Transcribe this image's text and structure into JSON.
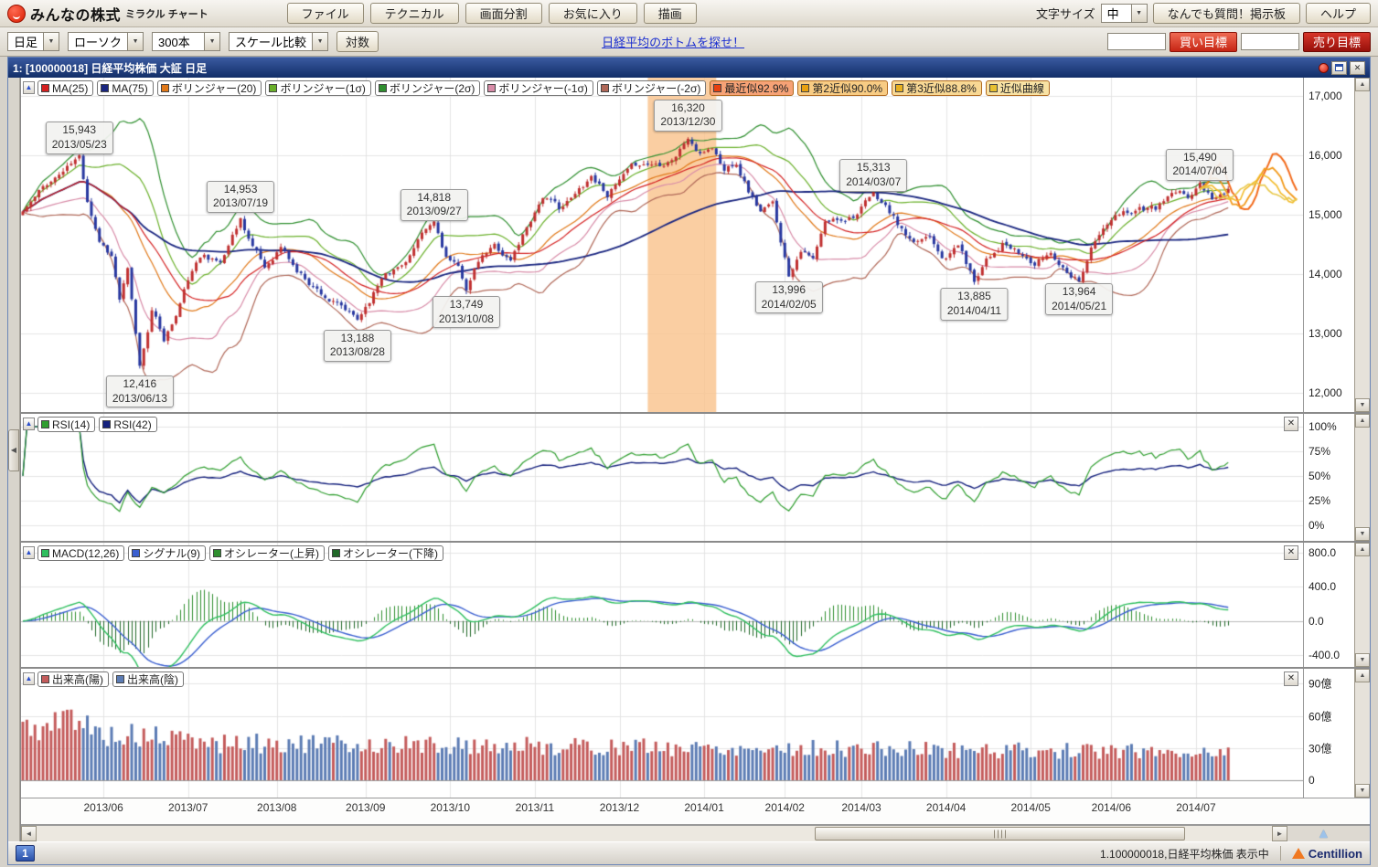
{
  "app": {
    "logo": {
      "brand": "みんなの株式",
      "product": "ミラクル チャート"
    },
    "toolbar1": {
      "buttons": [
        "ファイル",
        "テクニカル",
        "画面分割",
        "お気に入り",
        "描画"
      ],
      "font_size_label": "文字サイズ",
      "font_size_value": "中",
      "qa_button": "なんでも質問！掲示板",
      "help_button": "ヘルプ"
    },
    "toolbar2": {
      "period": "日足",
      "chart_style": "ローソク",
      "bar_count": "300本",
      "scale_compare": "スケール比較",
      "log_button": "対数",
      "link": "日経平均のボトムを探せ！",
      "buy_target_button": "買い目標",
      "sell_target_button": "売り目標"
    }
  },
  "window": {
    "title": "1:  [100000018] 日経平均株価 大証 日足",
    "statusbar": {
      "tab": "1",
      "status": "1.100000018,日経平均株価 表示中",
      "brand": "Centillion"
    }
  },
  "panels": {
    "price": {
      "legend": [
        {
          "label": "MA(25)",
          "swatch": "#d42020"
        },
        {
          "label": "MA(75)",
          "swatch": "#1a2680"
        },
        {
          "label": "ボリンジャー(20)",
          "swatch": "#e07818"
        },
        {
          "label": "ボリンジャー(1σ)",
          "swatch": "#6ab02a"
        },
        {
          "label": "ボリンジャー(2σ)",
          "swatch": "#2f8f2f"
        },
        {
          "label": "ボリンジャー(-1σ)",
          "swatch": "#d88ca8"
        },
        {
          "label": "ボリンジャー(-2σ)",
          "swatch": "#b06858"
        },
        {
          "label": "最近似92.9%",
          "swatch": "#e84010",
          "bg": "#f6a276"
        },
        {
          "label": "第2近似90.0%",
          "swatch": "#e8a010",
          "bg": "#f8cc84"
        },
        {
          "label": "第3近似88.8%",
          "swatch": "#e8b020",
          "bg": "#f8d894"
        },
        {
          "label": "近似曲線",
          "swatch": "#e8c030",
          "bg": "#f8e2a4"
        }
      ]
    },
    "rsi": {
      "legend": [
        {
          "label": "RSI(14)",
          "swatch": "#2f9e2f"
        },
        {
          "label": "RSI(42)",
          "swatch": "#16227e"
        }
      ]
    },
    "macd": {
      "legend": [
        {
          "label": "MACD(12,26)",
          "swatch": "#2fbf5f"
        },
        {
          "label": "シグナル(9)",
          "swatch": "#3a5fd0"
        },
        {
          "label": "オシレーター(上昇)",
          "swatch": "#2f8f2f"
        },
        {
          "label": "オシレーター(下降)",
          "swatch": "#206828"
        }
      ]
    },
    "volume": {
      "legend": [
        {
          "label": "出来高(陽)",
          "swatch": "#c45c5c"
        },
        {
          "label": "出来高(陰)",
          "swatch": "#5c7cb4"
        }
      ]
    }
  },
  "chart_data": {
    "type": "candlestick",
    "title": "日経平均株価 大証 日足",
    "num_candles": 300,
    "x_axis": {
      "labels": [
        "2013/06",
        "2013/07",
        "2013/08",
        "2013/09",
        "2013/10",
        "2013/11",
        "2013/12",
        "2014/01",
        "2014/02",
        "2014/03",
        "2014/04",
        "2014/05",
        "2014/06",
        "2014/07"
      ],
      "label_days": [
        20,
        41,
        63,
        85,
        106,
        127,
        148,
        169,
        189,
        208,
        229,
        250,
        270,
        291
      ]
    },
    "price_panel": {
      "y_ticks": [
        "17,000",
        "16,000",
        "15,000",
        "14,000",
        "13,000",
        "12,000"
      ],
      "y_tick_values": [
        17000,
        16000,
        15000,
        14000,
        13000,
        12000
      ],
      "scale_top": 17300,
      "scale_bottom": 11680,
      "highlight_band": {
        "day_from": 155,
        "day_to": 172,
        "color": "#f9c28b"
      },
      "colors": {
        "ma25": "#d42020",
        "ma75": "#1a2680",
        "boll20": "#e07818",
        "boll1": "#6ab02a",
        "boll2": "#2f8f2f",
        "boll_1": "#d88ca8",
        "boll_2": "#b06858",
        "candle_up": "#c03030",
        "candle_down": "#2838a0",
        "grid": "#e4e4e4"
      },
      "anchors": [
        [
          0,
          15050
        ],
        [
          6,
          15500
        ],
        [
          14,
          15943
        ],
        [
          16,
          15250
        ],
        [
          19,
          14600
        ],
        [
          22,
          14350
        ],
        [
          24,
          13600
        ],
        [
          26,
          14050
        ],
        [
          29,
          12416
        ],
        [
          32,
          13400
        ],
        [
          35,
          12900
        ],
        [
          38,
          13300
        ],
        [
          41,
          13900
        ],
        [
          45,
          14350
        ],
        [
          49,
          14200
        ],
        [
          54,
          14953
        ],
        [
          57,
          14500
        ],
        [
          60,
          14100
        ],
        [
          64,
          14480
        ],
        [
          68,
          14050
        ],
        [
          72,
          13820
        ],
        [
          76,
          13600
        ],
        [
          79,
          13420
        ],
        [
          83,
          13188
        ],
        [
          86,
          13560
        ],
        [
          90,
          14080
        ],
        [
          94,
          14170
        ],
        [
          98,
          14550
        ],
        [
          102,
          14818
        ],
        [
          105,
          14280
        ],
        [
          108,
          14050
        ],
        [
          110,
          13749
        ],
        [
          113,
          14180
        ],
        [
          117,
          14440
        ],
        [
          121,
          14230
        ],
        [
          125,
          14800
        ],
        [
          129,
          15350
        ],
        [
          133,
          15100
        ],
        [
          137,
          15300
        ],
        [
          141,
          15660
        ],
        [
          145,
          15380
        ],
        [
          149,
          15620
        ],
        [
          153,
          15820
        ],
        [
          158,
          15870
        ],
        [
          162,
          16050
        ],
        [
          165,
          16320
        ],
        [
          168,
          16000
        ],
        [
          171,
          16150
        ],
        [
          174,
          15750
        ],
        [
          177,
          15920
        ],
        [
          180,
          15450
        ],
        [
          183,
          15080
        ],
        [
          186,
          15150
        ],
        [
          190,
          13996
        ],
        [
          193,
          14480
        ],
        [
          196,
          14250
        ],
        [
          199,
          14820
        ],
        [
          203,
          14920
        ],
        [
          207,
          15060
        ],
        [
          211,
          15313
        ],
        [
          214,
          15120
        ],
        [
          217,
          14820
        ],
        [
          221,
          14420
        ],
        [
          225,
          14640
        ],
        [
          229,
          14300
        ],
        [
          232,
          14520
        ],
        [
          236,
          13885
        ],
        [
          239,
          14320
        ],
        [
          243,
          14560
        ],
        [
          247,
          14330
        ],
        [
          251,
          14150
        ],
        [
          255,
          14360
        ],
        [
          258,
          14150
        ],
        [
          262,
          13964
        ],
        [
          265,
          14480
        ],
        [
          269,
          14830
        ],
        [
          273,
          15000
        ],
        [
          277,
          15130
        ],
        [
          281,
          15080
        ],
        [
          285,
          15320
        ],
        [
          289,
          15250
        ],
        [
          292,
          15490
        ],
        [
          295,
          15290
        ],
        [
          299,
          15380
        ]
      ],
      "annotations": [
        {
          "value": "15,943",
          "date": "2013/05/23",
          "day": 14,
          "price": 15943,
          "pos": "above"
        },
        {
          "value": "12,416",
          "date": "2013/06/13",
          "day": 29,
          "price": 12416,
          "pos": "below"
        },
        {
          "value": "14,953",
          "date": "2013/07/19",
          "day": 54,
          "price": 14953,
          "pos": "above"
        },
        {
          "value": "13,188",
          "date": "2013/08/28",
          "day": 83,
          "price": 13188,
          "pos": "below"
        },
        {
          "value": "14,818",
          "date": "2013/09/27",
          "day": 102,
          "price": 14818,
          "pos": "above"
        },
        {
          "value": "13,749",
          "date": "2013/10/08",
          "day": 110,
          "price": 13749,
          "pos": "below"
        },
        {
          "value": "16,320",
          "date": "2013/12/30",
          "day": 165,
          "price": 16320,
          "pos": "above"
        },
        {
          "value": "13,996",
          "date": "2014/02/05",
          "day": 190,
          "price": 13996,
          "pos": "below"
        },
        {
          "value": "15,313",
          "date": "2014/03/07",
          "day": 211,
          "price": 15313,
          "pos": "above"
        },
        {
          "value": "13,885",
          "date": "2014/04/11",
          "day": 236,
          "price": 13885,
          "pos": "below"
        },
        {
          "value": "13,964",
          "date": "2014/05/21",
          "day": 262,
          "price": 13964,
          "pos": "below"
        },
        {
          "value": "15,490",
          "date": "2014/07/04",
          "day": 292,
          "price": 15490,
          "pos": "above"
        }
      ],
      "projections": [
        {
          "label": "最近似92.9%",
          "color": "#f26a1b",
          "amp": 420,
          "slope": 8,
          "width": 2
        },
        {
          "label": "第2近似90.0%",
          "color": "#f29a1b",
          "amp": 300,
          "slope": 3,
          "width": 1.8
        },
        {
          "label": "第3近似88.8%",
          "color": "#f2bb2b",
          "amp": 210,
          "slope": 0,
          "width": 1.6
        },
        {
          "label": "近似曲線",
          "color": "#e8c84a",
          "amp": 130,
          "slope": -3,
          "width": 1.6
        }
      ]
    },
    "rsi_panel": {
      "y_ticks": [
        "100%",
        "75%",
        "50%",
        "25%",
        "0%"
      ],
      "y_tick_values": [
        100,
        75,
        50,
        25,
        0
      ],
      "scale_top": 113,
      "scale_bottom": -16,
      "colors": {
        "rsi14": "#2f9e2f",
        "rsi42": "#16227e"
      }
    },
    "macd_panel": {
      "y_ticks": [
        "800.0",
        "400.0",
        "0.0",
        "-400.0"
      ],
      "y_tick_values": [
        800,
        400,
        0,
        -400
      ],
      "scale_top": 920,
      "scale_bottom": -540,
      "colors": {
        "macd": "#2fbf5f",
        "signal": "#3a5fd0",
        "hist_up": "#2f8f2f",
        "hist_down": "#206828"
      }
    },
    "volume_panel": {
      "y_ticks": [
        "90億",
        "60億",
        "30億",
        "0"
      ],
      "y_tick_values": [
        90,
        60,
        30,
        0
      ],
      "scale_top": 104,
      "scale_bottom": -16,
      "colors": {
        "up": "#c45c5c",
        "down": "#5c7cb4"
      }
    }
  }
}
